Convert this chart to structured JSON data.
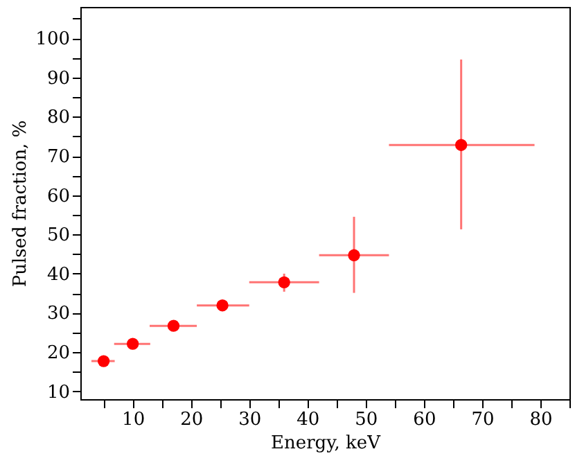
{
  "chart_data": {
    "type": "scatter",
    "xlabel": "Energy, keV",
    "ylabel": "Pulsed fraction, %",
    "x": [
      5,
      10,
      17,
      25.4,
      36,
      48,
      66.4
    ],
    "series": [
      {
        "color": "#ff0000",
        "values": [
          17.7,
          22.1,
          26.7,
          31.9,
          37.8,
          44.7,
          72.8
        ],
        "errors": [
          [
            17,
            18.4
          ],
          [
            21.3,
            22.9
          ],
          [
            26,
            27.4
          ],
          [
            31.2,
            32.6
          ],
          [
            35.4,
            40
          ],
          [
            35.1,
            54.5
          ],
          [
            51.3,
            94.6
          ]
        ],
        "xerrors": [
          [
            2.9,
            6.9
          ],
          [
            6.8,
            13
          ],
          [
            12.9,
            21
          ],
          [
            21,
            30
          ],
          [
            30,
            42
          ],
          [
            42,
            54
          ],
          [
            54,
            79
          ]
        ]
      }
    ],
    "xlim": [
      1,
      85
    ],
    "ylim": [
      8,
      108
    ],
    "xticks": [
      {
        "value": 5,
        "label": null
      },
      10,
      {
        "value": 15,
        "label": null
      },
      20,
      {
        "value": 25,
        "label": null
      },
      30,
      {
        "value": 35,
        "label": null
      },
      40,
      {
        "value": 45,
        "label": null
      },
      50,
      {
        "value": 55,
        "label": null
      },
      60,
      {
        "value": 65,
        "label": null
      },
      70,
      {
        "value": 75,
        "label": null
      },
      80,
      {
        "value": 85,
        "label": null
      }
    ],
    "yticks": [
      10,
      {
        "value": 15,
        "label": null
      },
      20,
      {
        "value": 25,
        "label": null
      },
      30,
      {
        "value": 35,
        "label": null
      },
      40,
      {
        "value": 45,
        "label": null
      },
      50,
      {
        "value": 55,
        "label": null
      },
      60,
      {
        "value": 65,
        "label": null
      },
      70,
      {
        "value": 75,
        "label": null
      },
      80,
      {
        "value": 85,
        "label": null
      },
      90,
      {
        "value": 95,
        "label": null
      },
      100,
      {
        "value": 105,
        "label": null
      }
    ],
    "marker": "circle",
    "grid": false
  }
}
